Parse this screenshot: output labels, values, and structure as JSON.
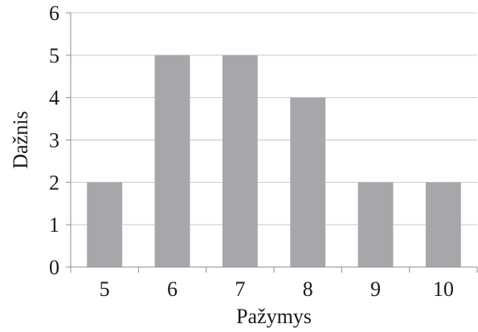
{
  "chart_data": {
    "type": "bar",
    "categories": [
      "5",
      "6",
      "7",
      "8",
      "9",
      "10"
    ],
    "values": [
      2,
      5,
      5,
      4,
      2,
      2
    ],
    "title": "",
    "xlabel": "Pažymys",
    "ylabel": "Dažnis",
    "ylim": [
      0,
      6
    ],
    "yticks": [
      "0",
      "1",
      "2",
      "3",
      "4",
      "5",
      "6"
    ],
    "grid": true,
    "bar_color": "#a6a7aa",
    "grid_color": "#c8c8c8",
    "axis_color": "#8c8c8c"
  }
}
